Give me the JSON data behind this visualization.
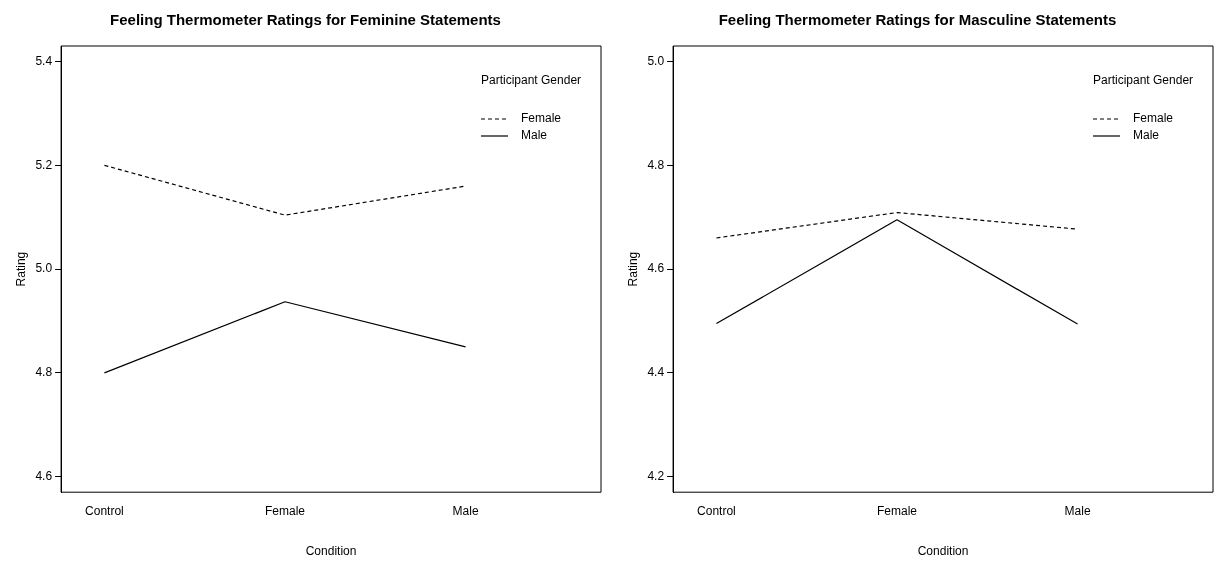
{
  "chart_data": [
    {
      "type": "line",
      "title": "Feeling Thermometer Ratings for Feminine Statements",
      "xlabel": "Condition",
      "ylabel": "Rating",
      "legend_title": "Participant Gender",
      "legend": "top right",
      "grid": false,
      "marker": "none",
      "categories": [
        "Control",
        "Female",
        "Male"
      ],
      "ylim": [
        4.57,
        5.43
      ],
      "yticks": [
        4.6,
        4.8,
        {
          "value": 5,
          "label": "5.0"
        },
        5.2,
        5.4
      ],
      "series": [
        {
          "name": "Female",
          "color": "#000000",
          "line_style": "dashed",
          "values": [
            5.2,
            5.104,
            5.16
          ]
        },
        {
          "name": "Male",
          "color": "#000000",
          "line_style": "solid",
          "values": [
            4.8,
            4.937,
            4.85
          ]
        }
      ]
    },
    {
      "type": "line",
      "title": "Feeling Thermometer Ratings for Masculine Statements",
      "xlabel": "Condition",
      "ylabel": "Rating",
      "legend_title": "Participant Gender",
      "legend": "top right",
      "grid": false,
      "marker": "none",
      "categories": [
        "Control",
        "Female",
        "Male"
      ],
      "ylim": [
        4.17,
        5.03
      ],
      "yticks": [
        4.2,
        4.4,
        4.6,
        4.8,
        {
          "value": 5,
          "label": "5.0"
        }
      ],
      "series": [
        {
          "name": "Female",
          "color": "#000000",
          "line_style": "dashed",
          "values": [
            4.66,
            4.709,
            4.677
          ]
        },
        {
          "name": "Male",
          "color": "#000000",
          "line_style": "solid",
          "values": [
            4.495,
            4.695,
            4.494
          ]
        }
      ]
    }
  ]
}
